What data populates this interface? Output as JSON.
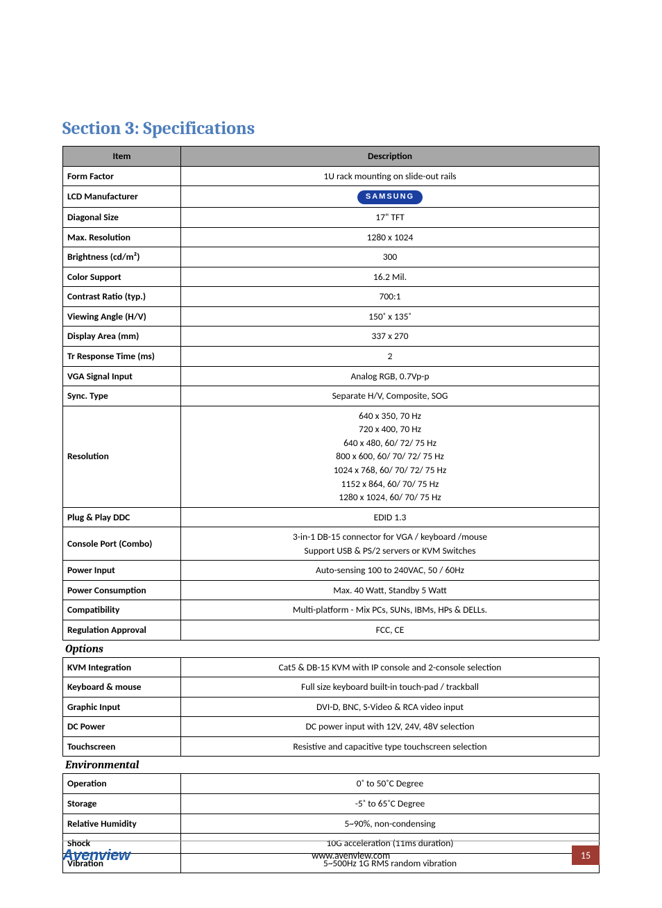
{
  "section_title": "Section 3: Specifications",
  "headers": {
    "item": "Item",
    "description": "Description"
  },
  "main_rows": [
    {
      "label": "Form Factor",
      "value": "1U rack mounting on slide-out rails"
    },
    {
      "label": "LCD Manufacturer",
      "value": "SAMSUNG",
      "is_logo": true
    },
    {
      "label": "Diagonal Size",
      "value": "17\" TFT"
    },
    {
      "label": "Max. Resolution",
      "value": "1280 x 1024"
    },
    {
      "label": "Brightness (cd/m²)",
      "value": "300"
    },
    {
      "label": "Color Support",
      "value": "16.2 Mil."
    },
    {
      "label": "Contrast Ratio (typ.)",
      "value": "700:1"
    },
    {
      "label": "Viewing Angle (H/V)",
      "value": "150˚ x 135˚"
    },
    {
      "label": "Display Area (mm)",
      "value": "337 x 270"
    },
    {
      "label": "Tr Response Time (ms)",
      "value": "2"
    },
    {
      "label": "VGA Signal Input",
      "value": "Analog RGB, 0.7Vp-p"
    },
    {
      "label": "Sync. Type",
      "value": "Separate H/V, Composite, SOG"
    },
    {
      "label": "Resolution",
      "lines": [
        "640 x 350, 70 Hz",
        "720 x 400, 70 Hz",
        "640 x 480, 60/ 72/ 75 Hz",
        "800 x 600, 60/ 70/ 72/ 75 Hz",
        "1024 x 768, 60/ 70/ 72/ 75 Hz",
        "1152 x 864, 60/ 70/ 75 Hz",
        "1280 x 1024, 60/ 70/ 75 Hz"
      ]
    },
    {
      "label": "Plug & Play DDC",
      "value": "EDID 1.3"
    },
    {
      "label": "Console Port (Combo)",
      "lines": [
        "3-in-1 DB-15 connector for VGA / keyboard /mouse",
        "Support USB & PS/2 servers or KVM Switches"
      ]
    },
    {
      "label": "Power Input",
      "value": "Auto-sensing 100 to 240VAC, 50 / 60Hz"
    },
    {
      "label": "Power Consumption",
      "value": "Max. 40 Watt, Standby 5 Watt"
    },
    {
      "label": "Compatibility",
      "value": "Multi-platform - Mix PCs, SUNs, IBMs, HPs & DELLs."
    },
    {
      "label": "Regulation Approval",
      "value": "FCC, CE"
    }
  ],
  "options_heading": "Options",
  "options_rows": [
    {
      "label": "KVM Integration",
      "value": "Cat5 & DB-15 KVM with IP console and 2-console selection"
    },
    {
      "label": "Keyboard & mouse",
      "value": "Full size keyboard built-in touch-pad / trackball"
    },
    {
      "label": "Graphic Input",
      "value": "DVI-D, BNC, S-Video & RCA video input"
    },
    {
      "label": "DC Power",
      "value": "DC power input with 12V, 24V, 48V selection"
    },
    {
      "label": "Touchscreen",
      "value": "Resistive and capacitive type touchscreen selection"
    }
  ],
  "env_heading": "Environmental",
  "env_rows": [
    {
      "label": "Operation",
      "value": "0˚ to 50˚C Degree"
    },
    {
      "label": "Storage",
      "value": "-5˚ to 65˚C Degree"
    },
    {
      "label": "Relative Humidity",
      "value": "5~90%, non-condensing"
    },
    {
      "label": "Shock",
      "value": "10G acceleration (11ms duration)"
    },
    {
      "label": "Vibration",
      "value": "5~500Hz 1G RMS random vibration"
    }
  ],
  "footer": {
    "brand": "Avenview",
    "url": "www.avenview.com",
    "page": "15"
  },
  "colors": {
    "title": "#4e7ebb",
    "header_bg": "#a7a7a7",
    "border": "#000000",
    "page_badge_bg": "#9e3b33",
    "brand": "#1e5aa8",
    "samsung_bg": "#1a3fa0"
  }
}
